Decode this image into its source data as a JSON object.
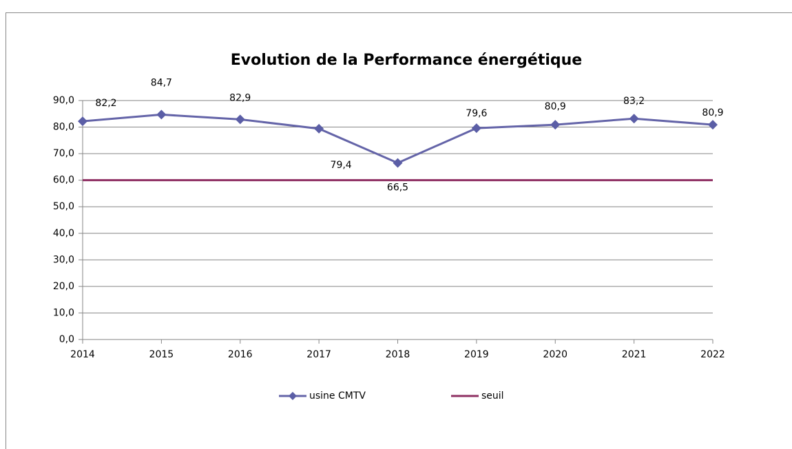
{
  "chart_data": {
    "type": "line",
    "title": "Evolution de la Performance énergétique",
    "categories": [
      "2014",
      "2015",
      "2016",
      "2017",
      "2018",
      "2019",
      "2020",
      "2021",
      "2022"
    ],
    "series": [
      {
        "name": "usine CMTV",
        "color": "#6464a8",
        "marker": "diamond",
        "values": [
          82.2,
          84.7,
          82.9,
          79.4,
          66.5,
          79.6,
          80.9,
          83.2,
          80.9
        ],
        "value_labels": [
          "82,2",
          "84,7",
          "82,9",
          "79,4",
          "66,5",
          "79,6",
          "80,9",
          "83,2",
          "80,9"
        ]
      },
      {
        "name": "seuil",
        "color": "#8e2f62",
        "values": [
          60,
          60,
          60,
          60,
          60,
          60,
          60,
          60,
          60
        ]
      }
    ],
    "ylim": [
      0,
      90
    ],
    "yticks": [
      {
        "value": 0,
        "label": "0,0"
      },
      {
        "value": 10,
        "label": "10,0"
      },
      {
        "value": 20,
        "label": "20,0"
      },
      {
        "value": 30,
        "label": "30,0"
      },
      {
        "value": 40,
        "label": "40,0"
      },
      {
        "value": 50,
        "label": "50,0"
      },
      {
        "value": 60,
        "label": "60,0"
      },
      {
        "value": 70,
        "label": "70,0"
      },
      {
        "value": 80,
        "label": "80,0"
      },
      {
        "value": 90,
        "label": "90,0"
      }
    ],
    "grid": true,
    "legend": "bottom"
  }
}
